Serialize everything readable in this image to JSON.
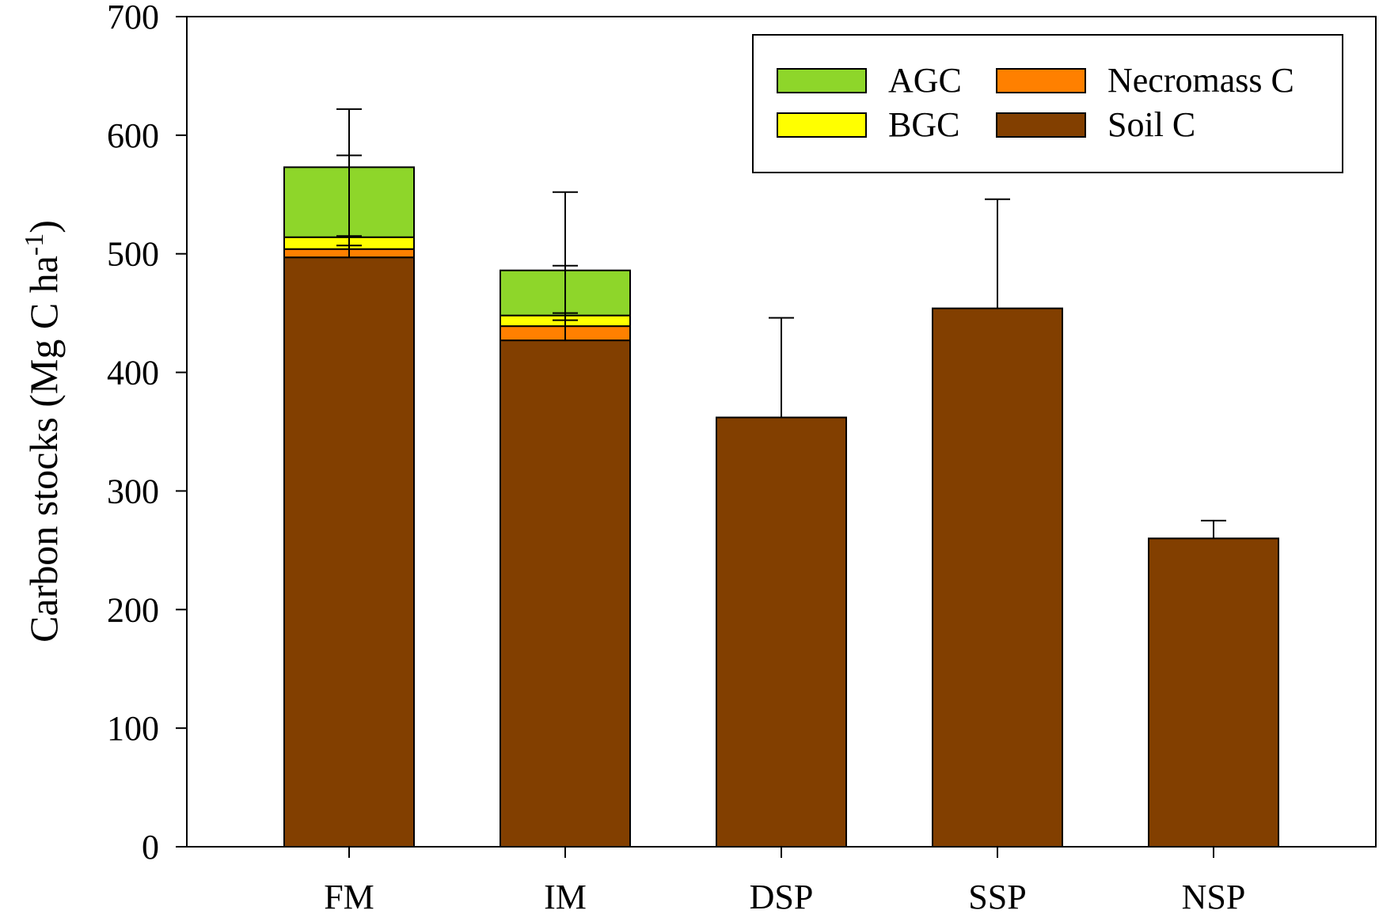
{
  "chart_data": {
    "type": "bar",
    "stacked": true,
    "title": "",
    "xlabel": "",
    "ylabel": {
      "main": "Carbon stocks (Mg C ha",
      "superscript": "-1",
      "close": ")"
    },
    "ylim": [
      0,
      700
    ],
    "yticks": [
      "0",
      "100",
      "200",
      "300",
      "400",
      "500",
      "600",
      "700"
    ],
    "grid": false,
    "legend_position": "top-right",
    "categories": [
      "FM",
      "IM",
      "DSP",
      "SSP",
      "NSP"
    ],
    "series": [
      {
        "name": "Soil C",
        "color": "#823f00",
        "values": [
          497,
          427,
          362,
          454,
          260
        ],
        "error": [
          null,
          null,
          84,
          92,
          15
        ]
      },
      {
        "name": "Necromass C",
        "color": "#ff8000",
        "values": [
          7,
          12,
          0,
          0,
          0
        ],
        "error": [
          null,
          null,
          null,
          null,
          null
        ]
      },
      {
        "name": "BGC",
        "color": "#ffff00",
        "values": [
          10,
          9,
          0,
          0,
          0
        ],
        "error": [
          null,
          null,
          null,
          null,
          null
        ]
      },
      {
        "name": "AGC",
        "color": "#8ed62a",
        "values": [
          59,
          38,
          0,
          0,
          0
        ],
        "error": [
          null,
          null,
          null,
          null,
          null
        ]
      }
    ],
    "error_bars": [
      {
        "category": "FM",
        "center": 497,
        "upper": 622,
        "caps": [
          622,
          583,
          515,
          507
        ]
      },
      {
        "category": "IM",
        "center": 427,
        "upper": 552,
        "caps": [
          552,
          490,
          450,
          444
        ]
      },
      {
        "category": "DSP",
        "center": 362,
        "upper": 446,
        "caps": [
          446
        ]
      },
      {
        "category": "SSP",
        "center": 454,
        "upper": 546,
        "caps": [
          546
        ]
      },
      {
        "category": "NSP",
        "center": 260,
        "upper": 275,
        "caps": [
          275
        ]
      }
    ],
    "legend": [
      {
        "name": "AGC",
        "color": "#8ed62a"
      },
      {
        "name": "Necromass C",
        "color": "#ff8000"
      },
      {
        "name": "BGC",
        "color": "#ffff00"
      },
      {
        "name": "Soil C",
        "color": "#823f00"
      }
    ]
  }
}
